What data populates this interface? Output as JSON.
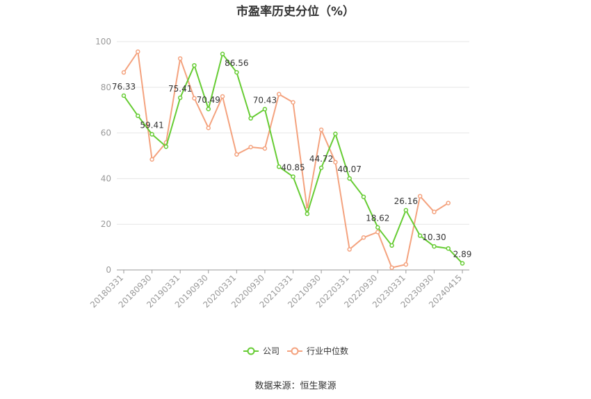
{
  "title": "市盈率历史分位（%）",
  "source": "数据来源：恒生聚源",
  "chart_data": {
    "type": "line",
    "title": "市盈率历史分位（%）",
    "ylim": [
      0,
      100
    ],
    "yticks": [
      0,
      20,
      40,
      60,
      80,
      100
    ],
    "grid": true,
    "legend_position": "bottom",
    "xtick_labels": [
      "20180331",
      "20180930",
      "20190331",
      "20190930",
      "20200331",
      "20200930",
      "20210331",
      "20210930",
      "20220331",
      "20220930",
      "20230331",
      "20230930",
      "20240415"
    ],
    "x": [
      "20180331",
      "20180630",
      "20180930",
      "20181231",
      "20190331",
      "20190630",
      "20190930",
      "20191231",
      "20200331",
      "20200630",
      "20200930",
      "20201231",
      "20210331",
      "20210630",
      "20210930",
      "20211231",
      "20220331",
      "20220630",
      "20220930",
      "20221231",
      "20230331",
      "20230630",
      "20230930",
      "20231231",
      "20240415"
    ],
    "series": [
      {
        "name": "公司",
        "color": "#66cc33",
        "values": [
          76.33,
          67.5,
          59.41,
          54.0,
          75.41,
          89.6,
          70.49,
          94.6,
          86.56,
          66.4,
          70.43,
          45.2,
          40.85,
          24.6,
          44.72,
          59.6,
          40.07,
          32.0,
          18.62,
          10.7,
          26.16,
          15.0,
          10.3,
          9.4,
          2.89
        ],
        "labels": [
          "76.33",
          "",
          "59.41",
          "",
          "75.41",
          "",
          "70.49",
          "",
          "86.56",
          "",
          "70.43",
          "",
          "40.85",
          "",
          "44.72",
          "",
          "40.07",
          "",
          "18.62",
          "",
          "26.16",
          "",
          "10.30",
          "",
          "2.89"
        ]
      },
      {
        "name": "行业中位数",
        "color": "#f4a27e",
        "values": [
          86.5,
          95.6,
          48.4,
          55.8,
          92.6,
          75.2,
          62.2,
          76.0,
          50.6,
          53.8,
          53.2,
          77.0,
          73.4,
          26.5,
          61.4,
          47.2,
          9.0,
          14.2,
          16.6,
          1.0,
          2.4,
          32.3,
          25.4,
          29.3,
          null
        ]
      }
    ]
  }
}
